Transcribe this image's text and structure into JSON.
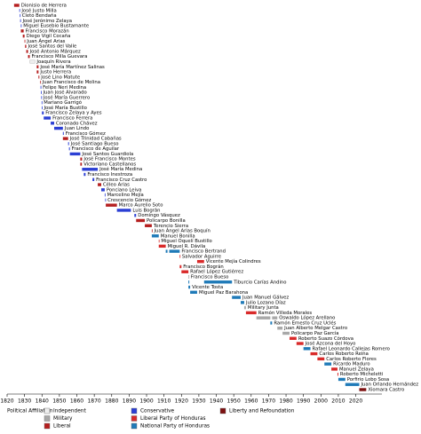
{
  "chart_data": {
    "type": "timeline",
    "xlim": [
      1820,
      2035
    ],
    "xticks": [
      1820,
      1830,
      1840,
      1850,
      1860,
      1870,
      1880,
      1890,
      1900,
      1910,
      1920,
      1930,
      1940,
      1950,
      1960,
      1970,
      1980,
      1990,
      2000,
      2010,
      2020
    ],
    "legend_title": "Political Affiliation",
    "parties": [
      {
        "name": "Independent",
        "color": "#eeeeee"
      },
      {
        "name": "Military",
        "color": "#a8a8a8"
      },
      {
        "name": "Liberal",
        "color": "#b51f1f"
      },
      {
        "name": "Conservative",
        "color": "#2b3fd4"
      },
      {
        "name": "Liberal Party of Honduras",
        "color": "#d92a2a"
      },
      {
        "name": "National Party of Honduras",
        "color": "#1f7ab8"
      },
      {
        "name": "Liberty and Refoundation",
        "color": "#7d1111"
      }
    ],
    "rows": [
      {
        "name": "Dionisio de Herrera",
        "affiliation": "Liberal",
        "terms": [
          [
            1824,
            1827
          ]
        ]
      },
      {
        "name": "José Justo Milla",
        "affiliation": "Conservative",
        "terms": [
          [
            1827,
            1827.3
          ]
        ]
      },
      {
        "name": "Cleto Bendaña",
        "affiliation": "Conservative",
        "terms": [
          [
            1827.3,
            1827.5
          ]
        ]
      },
      {
        "name": "José Jerónimo Zelaya",
        "affiliation": "Conservative",
        "terms": [
          [
            1827.5,
            1827.9
          ]
        ]
      },
      {
        "name": "Miguel Eusebio Bustamante",
        "affiliation": "Conservative",
        "terms": [
          [
            1827.9,
            1828.3
          ]
        ]
      },
      {
        "name": "Francisco Morazán",
        "affiliation": "Liberal",
        "terms": [
          [
            1827.9,
            1829.5
          ]
        ]
      },
      {
        "name": "Diego Vigil Cocaña",
        "affiliation": "Liberal",
        "terms": [
          [
            1829,
            1830
          ]
        ]
      },
      {
        "name": "Juan Ángel Arias",
        "affiliation": "Liberal",
        "terms": [
          [
            1830,
            1830.3
          ]
        ]
      },
      {
        "name": "José Santos del Valle",
        "affiliation": "Liberal",
        "terms": [
          [
            1830.3,
            1831
          ]
        ]
      },
      {
        "name": "José Antonio Márquez",
        "affiliation": "Liberal",
        "terms": [
          [
            1831,
            1832
          ]
        ]
      },
      {
        "name": "Francisco Milla Guevara",
        "affiliation": "Liberal",
        "terms": [
          [
            1832,
            1833
          ]
        ]
      },
      {
        "name": "Joaquín Rivera",
        "affiliation": "Independent",
        "terms": [
          [
            1833,
            1836
          ]
        ]
      },
      {
        "name": "José María Martínez Salinas",
        "affiliation": "Liberal",
        "terms": [
          [
            1837,
            1838
          ]
        ]
      },
      {
        "name": "Justo Herrera",
        "affiliation": "Liberal",
        "terms": [
          [
            1837,
            1838
          ]
        ]
      },
      {
        "name": "José Lino Matute",
        "affiliation": "Liberal",
        "terms": [
          [
            1838,
            1838.5
          ]
        ]
      },
      {
        "name": "Juan Francisco de Molina",
        "affiliation": "Liberal",
        "terms": [
          [
            1839,
            1839.2
          ]
        ]
      },
      {
        "name": "Felipe Neri Medina",
        "affiliation": "Conservative",
        "terms": [
          [
            1839.2,
            1839.4
          ]
        ]
      },
      {
        "name": "Juan José Alvarado",
        "affiliation": "Conservative",
        "terms": [
          [
            1839.4,
            1839.6
          ]
        ]
      },
      {
        "name": "José María Guerrero",
        "affiliation": "Conservative",
        "terms": [
          [
            1839.6,
            1839.8
          ]
        ]
      },
      {
        "name": "Mariano Garrigó",
        "affiliation": "Conservative",
        "terms": [
          [
            1839.8,
            1840
          ]
        ]
      },
      {
        "name": "José María Bustillo",
        "affiliation": "Conservative",
        "terms": [
          [
            1839.9,
            1840.1
          ]
        ]
      },
      {
        "name": "Francisco Zelaya y Ayes",
        "affiliation": "Conservative",
        "terms": [
          [
            1840,
            1841
          ]
        ]
      },
      {
        "name": "Francisco Ferrera",
        "affiliation": "Conservative",
        "terms": [
          [
            1841,
            1845
          ]
        ]
      },
      {
        "name": "Coronado Chávez",
        "affiliation": "Conservative",
        "terms": [
          [
            1845,
            1847
          ]
        ]
      },
      {
        "name": "Juan Lindo",
        "affiliation": "Conservative",
        "terms": [
          [
            1847,
            1852
          ]
        ]
      },
      {
        "name": "Francisco Gómez",
        "affiliation": "Conservative",
        "terms": [
          [
            1852,
            1852.5
          ]
        ]
      },
      {
        "name": "José Trinidad Cabañas",
        "affiliation": "Liberal",
        "terms": [
          [
            1852,
            1855
          ]
        ]
      },
      {
        "name": "José Santiago Bueso",
        "affiliation": "Conservative",
        "terms": [
          [
            1855,
            1855.5
          ]
        ]
      },
      {
        "name": "Francisco de Aguilar",
        "affiliation": "Conservative",
        "terms": [
          [
            1855.5,
            1856
          ]
        ]
      },
      {
        "name": "José Santos Guardiola",
        "affiliation": "Conservative",
        "terms": [
          [
            1856,
            1862
          ]
        ]
      },
      {
        "name": "José Francisco Montes",
        "affiliation": "Liberal",
        "terms": [
          [
            1862,
            1863
          ]
        ]
      },
      {
        "name": "Victoriano Castellanos",
        "affiliation": "Liberal",
        "terms": [
          [
            1862,
            1862.9
          ]
        ]
      },
      {
        "name": "José María Medina",
        "affiliation": "Conservative",
        "terms": [
          [
            1863,
            1872
          ]
        ]
      },
      {
        "name": "Francisco Inestroza",
        "affiliation": "Conservative",
        "terms": [
          [
            1864,
            1865
          ]
        ]
      },
      {
        "name": "Francisco Cruz Castro",
        "affiliation": "Conservative",
        "terms": [
          [
            1869,
            1870
          ]
        ]
      },
      {
        "name": "Céleo Arias",
        "affiliation": "Liberal",
        "terms": [
          [
            1872,
            1874
          ]
        ]
      },
      {
        "name": "Ponciano Leiva",
        "affiliation": "Conservative",
        "terms": [
          [
            1874,
            1876
          ]
        ]
      },
      {
        "name": "Marcelino Mejía",
        "affiliation": "Conservative",
        "terms": [
          [
            1876,
            1876.3
          ]
        ]
      },
      {
        "name": "Crescencio Gómez",
        "affiliation": "Conservative",
        "terms": [
          [
            1876.3,
            1876.6
          ]
        ]
      },
      {
        "name": "Marco Aurelio Soto",
        "affiliation": "Liberal",
        "terms": [
          [
            1876.6,
            1883
          ]
        ]
      },
      {
        "name": "Luis Bográn",
        "affiliation": "Conservative",
        "terms": [
          [
            1883,
            1891
          ]
        ]
      },
      {
        "name": "Domingo Vásquez",
        "affiliation": "Conservative",
        "terms": [
          [
            1893,
            1894
          ]
        ]
      },
      {
        "name": "Policarpo Bonilla",
        "affiliation": "Liberal",
        "terms": [
          [
            1894,
            1899
          ]
        ]
      },
      {
        "name": "Terencio Sierra",
        "affiliation": "Liberal",
        "terms": [
          [
            1899,
            1903
          ]
        ]
      },
      {
        "name": "Juan Ángel Arias Boquín",
        "affiliation": "Liberal",
        "terms": [
          [
            1903,
            1903.3
          ]
        ]
      },
      {
        "name": "Manuel Bonilla",
        "affiliation": "National Party of Honduras",
        "terms": [
          [
            1903,
            1907
          ]
        ]
      },
      {
        "name": "Miguel Oquelí Bustillo",
        "affiliation": "Liberal Party of Honduras",
        "terms": [
          [
            1907,
            1907.3
          ]
        ]
      },
      {
        "name": "Miguel R. Dávila",
        "affiliation": "Liberal Party of Honduras",
        "terms": [
          [
            1907,
            1911
          ]
        ]
      },
      {
        "name": "Francisco Bertrand",
        "affiliation": "National Party of Honduras",
        "terms": [
          [
            1911,
            1912
          ],
          [
            1913,
            1919
          ]
        ]
      },
      {
        "name": "Salvador Aguirre",
        "affiliation": "Liberal Party of Honduras",
        "terms": [
          [
            1919,
            1919.3
          ]
        ]
      },
      {
        "name": "Vicente Mejía Colindres",
        "affiliation": "Liberal Party of Honduras",
        "terms": [
          [
            1929,
            1933
          ]
        ]
      },
      {
        "name": "Francisco Bográn",
        "affiliation": "Liberal Party of Honduras",
        "terms": [
          [
            1919,
            1920
          ]
        ]
      },
      {
        "name": "Rafael López Gutiérrez",
        "affiliation": "Liberal Party of Honduras",
        "terms": [
          [
            1920,
            1924
          ]
        ]
      },
      {
        "name": "Francisco Bueso",
        "affiliation": "Independent",
        "terms": [
          [
            1924,
            1924.3
          ]
        ]
      },
      {
        "name": "Tiburcio Carías Andino",
        "affiliation": "National Party of Honduras",
        "terms": [
          [
            1924,
            1924.5
          ],
          [
            1933,
            1949
          ]
        ]
      },
      {
        "name": "Vicente Tosta",
        "affiliation": "National Party of Honduras",
        "terms": [
          [
            1924,
            1925
          ]
        ]
      },
      {
        "name": "Miguel Paz Barahona",
        "affiliation": "National Party of Honduras",
        "terms": [
          [
            1925,
            1929
          ]
        ]
      },
      {
        "name": "Juan Manuel Gálvez",
        "affiliation": "National Party of Honduras",
        "terms": [
          [
            1949,
            1954
          ]
        ]
      },
      {
        "name": "Julio Lozano Díaz",
        "affiliation": "National Party of Honduras",
        "terms": [
          [
            1954,
            1956
          ]
        ]
      },
      {
        "name": "Military Junta",
        "affiliation": "Military",
        "terms": [
          [
            1956,
            1957
          ]
        ]
      },
      {
        "name": "Ramón Villeda Morales",
        "affiliation": "Liberal Party of Honduras",
        "terms": [
          [
            1957,
            1963
          ]
        ]
      },
      {
        "name": "Oswaldo López Arellano",
        "affiliation": "Military",
        "terms": [
          [
            1963,
            1971
          ],
          [
            1972,
            1975
          ]
        ]
      },
      {
        "name": "Ramón Ernesto Cruz Uclés",
        "affiliation": "National Party of Honduras",
        "terms": [
          [
            1971,
            1972
          ]
        ]
      },
      {
        "name": "Juan Alberto Melgar Castro",
        "affiliation": "Military",
        "terms": [
          [
            1975,
            1978
          ]
        ]
      },
      {
        "name": "Policarpo Paz García",
        "affiliation": "Military",
        "terms": [
          [
            1978,
            1982
          ]
        ]
      },
      {
        "name": "Roberto Suazo Córdova",
        "affiliation": "Liberal Party of Honduras",
        "terms": [
          [
            1982,
            1986
          ]
        ]
      },
      {
        "name": "José Azcona del Hoyo",
        "affiliation": "Liberal Party of Honduras",
        "terms": [
          [
            1986,
            1990
          ]
        ]
      },
      {
        "name": "Rafael Leonardo Callejas Romero",
        "affiliation": "National Party of Honduras",
        "terms": [
          [
            1990,
            1994
          ]
        ]
      },
      {
        "name": "Carlos Roberto Reina",
        "affiliation": "Liberal Party of Honduras",
        "terms": [
          [
            1994,
            1998
          ]
        ]
      },
      {
        "name": "Carlos Roberto Flores",
        "affiliation": "Liberal Party of Honduras",
        "terms": [
          [
            1998,
            2002
          ]
        ]
      },
      {
        "name": "Ricardo Maduro",
        "affiliation": "National Party of Honduras",
        "terms": [
          [
            2002,
            2006
          ]
        ]
      },
      {
        "name": "Manuel Zelaya",
        "affiliation": "Liberal Party of Honduras",
        "terms": [
          [
            2006,
            2009.5
          ]
        ]
      },
      {
        "name": "Roberto Micheletti",
        "affiliation": "Liberal Party of Honduras",
        "terms": [
          [
            2009.5,
            2010
          ]
        ]
      },
      {
        "name": "Porfirio Lobo Sosa",
        "affiliation": "National Party of Honduras",
        "terms": [
          [
            2010,
            2014
          ]
        ]
      },
      {
        "name": "Juan Orlando Hernández",
        "affiliation": "National Party of Honduras",
        "terms": [
          [
            2014,
            2022
          ]
        ]
      },
      {
        "name": "Xiomara Castro",
        "affiliation": "Liberty and Refoundation",
        "terms": [
          [
            2022,
            2026
          ]
        ]
      }
    ]
  }
}
